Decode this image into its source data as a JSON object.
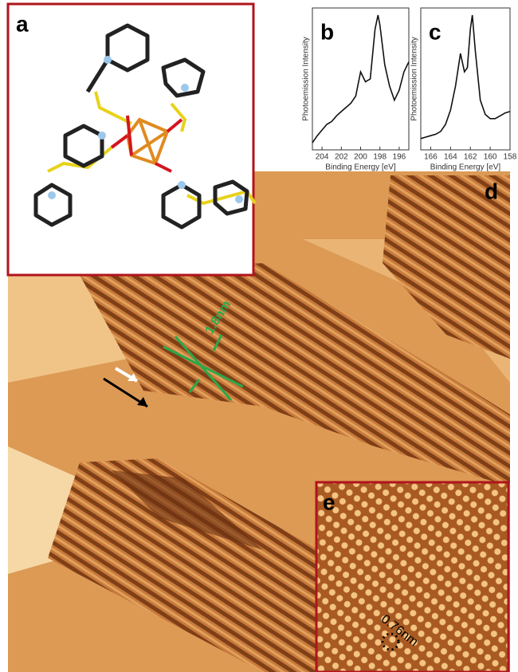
{
  "molecule_panel": {
    "label": "a"
  },
  "spectra": [
    {
      "label": "b",
      "ylabel": "Photoemission Intensity",
      "xlabel": "Binding Energy [eV]",
      "xlim": [
        205,
        195
      ],
      "xticks": [
        204,
        202,
        200,
        198,
        196
      ],
      "ylim": [
        0,
        100
      ],
      "x": [
        205,
        204.5,
        204,
        203.5,
        203,
        202.5,
        202,
        201.5,
        201,
        200.5,
        200,
        199.5,
        199,
        198.5,
        198.2,
        198,
        197.5,
        197,
        196.5,
        196,
        195.5,
        195
      ],
      "values": [
        5,
        10,
        14,
        18,
        20,
        24,
        27,
        30,
        33,
        38,
        55,
        48,
        50,
        85,
        95,
        88,
        60,
        45,
        35,
        42,
        55,
        62
      ]
    },
    {
      "label": "c",
      "ylabel": "Photoemission Intensity",
      "xlabel": "Binding Energy [eV]",
      "xlim": [
        167,
        158
      ],
      "xticks": [
        166,
        164,
        162,
        160,
        158
      ],
      "ylim": [
        0,
        100
      ],
      "x": [
        167,
        166.5,
        166,
        165.5,
        165,
        164.5,
        164,
        163.5,
        163,
        162.6,
        162.3,
        162,
        161.8,
        161.5,
        161,
        160.5,
        160,
        159.5,
        159,
        158.5,
        158
      ],
      "values": [
        8,
        9,
        10,
        11,
        13,
        18,
        28,
        45,
        68,
        55,
        58,
        85,
        95,
        70,
        35,
        25,
        22,
        22,
        24,
        26,
        27
      ]
    }
  ],
  "stm_image": {
    "label": "d",
    "annotation": "1.8nm"
  },
  "inset": {
    "label": "e",
    "annotation": "0.76nm"
  }
}
